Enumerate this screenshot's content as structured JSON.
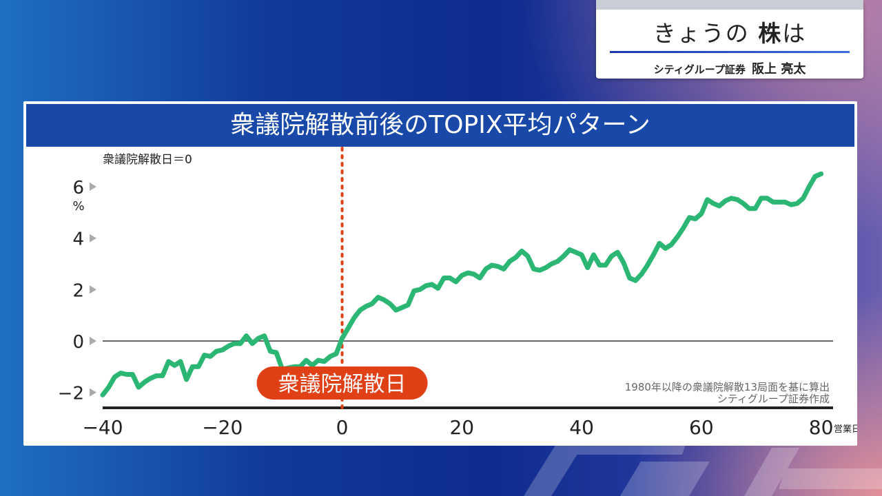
{
  "caption": {
    "title_pre": "きょうの",
    "title_bold": "株",
    "title_post": "は",
    "affiliation": "シティグループ証券",
    "name": "阪上 亮太"
  },
  "chart_data": {
    "type": "line",
    "title": "衆議院解散前後のTOPIX平均パターン",
    "subtitle": "衆議院解散日＝0",
    "ylabel": "%",
    "xlabel": "営業日",
    "xlim": [
      -40,
      82
    ],
    "ylim": [
      -2.6,
      7.1
    ],
    "x_ticks": [
      -40,
      -20,
      0,
      20,
      40,
      60,
      80
    ],
    "x_tick_labels": [
      "−40",
      "−20",
      "0",
      "20",
      "40",
      "60",
      "80"
    ],
    "y_ticks": [
      6,
      4,
      2,
      0,
      -2
    ],
    "y_tick_labels": [
      "6",
      "4",
      "2",
      "0",
      "−2"
    ],
    "event_marker": {
      "x": 0,
      "label": "衆議院解散日"
    },
    "annotations": [
      "1980年以降の衆議院解散13局面を基に算出",
      "シティグループ証券作成"
    ],
    "colors": {
      "line": "#2bb673",
      "event_line": "#e04016",
      "event_label_bg": "#e04016",
      "header_bg": "#1848a8"
    },
    "series": [
      {
        "name": "",
        "x": [
          -40,
          -39,
          -38,
          -37,
          -36,
          -35,
          -34,
          -33,
          -32,
          -31,
          -30,
          -29,
          -28,
          -27,
          -26,
          -25,
          -24,
          -23,
          -22,
          -21,
          -20,
          -19,
          -18,
          -17,
          -16,
          -15,
          -14,
          -13,
          -12,
          -11,
          -10,
          -9,
          -8,
          -7,
          -6,
          -5,
          -4,
          -3,
          -2,
          -1,
          0,
          1,
          2,
          3,
          4,
          5,
          6,
          7,
          8,
          9,
          10,
          11,
          12,
          13,
          14,
          15,
          16,
          17,
          18,
          19,
          20,
          21,
          22,
          23,
          24,
          25,
          26,
          27,
          28,
          29,
          30,
          31,
          32,
          33,
          34,
          35,
          36,
          37,
          38,
          39,
          40,
          41,
          42,
          43,
          44,
          45,
          46,
          47,
          48,
          49,
          50,
          51,
          52,
          53,
          54,
          55,
          56,
          57,
          58,
          59,
          60,
          61,
          62,
          63,
          64,
          65,
          66,
          67,
          68,
          69,
          70,
          71,
          72,
          73,
          74,
          75,
          76,
          77,
          78,
          79,
          80
        ],
        "values": [
          -2.1,
          -1.8,
          -1.4,
          -1.25,
          -1.3,
          -1.3,
          -1.8,
          -1.6,
          -1.45,
          -1.35,
          -1.35,
          -0.8,
          -0.95,
          -0.8,
          -1.5,
          -1.0,
          -1.0,
          -0.55,
          -0.6,
          -0.4,
          -0.35,
          -0.2,
          -0.1,
          -0.1,
          0.2,
          -0.1,
          0.1,
          0.2,
          -0.4,
          -0.45,
          -1.1,
          -1.05,
          -1.0,
          -1.0,
          -0.75,
          -0.95,
          -0.75,
          -0.8,
          -0.6,
          -0.5,
          0.1,
          0.5,
          0.9,
          1.2,
          1.35,
          1.45,
          1.7,
          1.6,
          1.45,
          1.2,
          1.3,
          1.4,
          1.95,
          2.0,
          2.15,
          2.2,
          2.05,
          2.45,
          2.45,
          2.3,
          2.55,
          2.65,
          2.6,
          2.45,
          2.8,
          2.95,
          2.9,
          2.8,
          3.1,
          3.25,
          3.5,
          3.3,
          2.8,
          2.75,
          2.85,
          3.0,
          3.1,
          3.3,
          3.55,
          3.45,
          3.35,
          2.85,
          3.35,
          2.95,
          2.95,
          3.3,
          3.45,
          3.05,
          2.45,
          2.35,
          2.6,
          2.95,
          3.35,
          3.8,
          3.6,
          3.75,
          4.05,
          4.4,
          4.8,
          4.75,
          4.95,
          5.5,
          5.35,
          5.25,
          5.45,
          5.55,
          5.5,
          5.35,
          5.15,
          5.15,
          5.55,
          5.55,
          5.4,
          5.4,
          5.4,
          5.3,
          5.35,
          5.55,
          6.0,
          6.4,
          6.5
        ]
      }
    ]
  }
}
